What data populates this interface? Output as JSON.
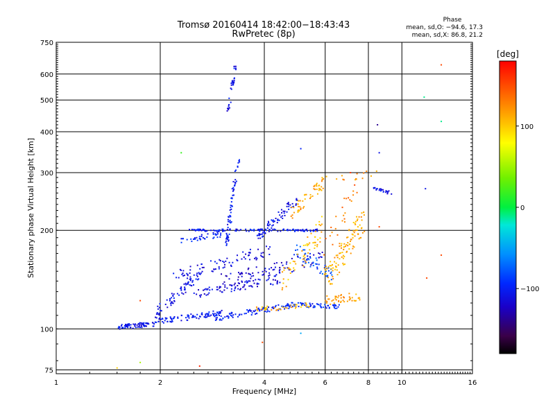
{
  "chart_data": {
    "type": "scatter",
    "title": "Tromsø 20160414 18:42:00−18:43:43",
    "subtitle": "RwPretec (8p)",
    "xlabel": "Frequency [MHz]",
    "ylabel": "Stationary phase Virtual Height [km]",
    "x_scale": "log2",
    "y_scale": "log",
    "xlim": [
      1,
      16
    ],
    "ylim": [
      73,
      750
    ],
    "x_ticks": [
      1,
      2,
      4,
      6,
      8,
      10,
      16
    ],
    "x_tick_labels": [
      "1",
      "2",
      "4",
      "6",
      "8",
      "10",
      "16"
    ],
    "y_ticks": [
      75,
      100,
      200,
      300,
      400,
      500,
      600,
      750
    ],
    "y_tick_labels": [
      "75",
      "100",
      "200",
      "300",
      "400",
      "500",
      "600",
      "750"
    ],
    "grid": true,
    "phase_stats": {
      "heading": "Phase",
      "line_o": "mean, sd,O: −94.6, 17.3",
      "line_x": "mean, sd,X:  86.8, 21.2"
    },
    "colorbar": {
      "label": "[deg]",
      "min": -180,
      "max": 180,
      "ticks": [
        -100,
        0,
        100
      ],
      "tick_labels": [
        "−100",
        "0",
        "100"
      ]
    },
    "traces": [
      {
        "x0": 1.5,
        "x1": 1.95,
        "y0": 101,
        "y1": 104,
        "phase": -110,
        "n": 70,
        "spread": 0.018
      },
      {
        "x0": 1.9,
        "x1": 3.0,
        "y0": 105,
        "y1": 112,
        "phase": -105,
        "n": 90,
        "spread": 0.02
      },
      {
        "x0": 2.9,
        "x1": 4.8,
        "y0": 108,
        "y1": 118,
        "phase": -100,
        "n": 90,
        "spread": 0.02
      },
      {
        "x0": 4.6,
        "x1": 6.6,
        "y0": 119,
        "y1": 117,
        "phase": -95,
        "n": 60,
        "spread": 0.015
      },
      {
        "x0": 1.9,
        "x1": 2.6,
        "y0": 110,
        "y1": 145,
        "phase": -110,
        "n": 70,
        "spread": 0.035
      },
      {
        "x0": 2.5,
        "x1": 4.5,
        "y0": 128,
        "y1": 142,
        "phase": -115,
        "n": 80,
        "spread": 0.03
      },
      {
        "x0": 2.2,
        "x1": 4.2,
        "y0": 145,
        "y1": 175,
        "phase": -115,
        "n": 80,
        "spread": 0.04
      },
      {
        "x0": 2.4,
        "x1": 5.8,
        "y0": 200,
        "y1": 200,
        "phase": -105,
        "n": 110,
        "spread": 0.008
      },
      {
        "x0": 2.3,
        "x1": 3.0,
        "y0": 185,
        "y1": 195,
        "phase": -100,
        "n": 40,
        "spread": 0.02
      },
      {
        "x0": 3.0,
        "x1": 6.0,
        "y0": 140,
        "y1": 165,
        "phase": -120,
        "n": 90,
        "spread": 0.05
      },
      {
        "x0": 3.8,
        "x1": 5.0,
        "y0": 190,
        "y1": 250,
        "phase": -110,
        "n": 70,
        "spread": 0.04
      },
      {
        "x0": 4.9,
        "x1": 6.3,
        "y0": 175,
        "y1": 145,
        "phase": -85,
        "n": 50,
        "spread": 0.05
      },
      {
        "x0": 3.1,
        "x1": 3.3,
        "y0": 180,
        "y1": 290,
        "phase": -105,
        "n": 60,
        "spread": 0.04
      },
      {
        "x0": 3.15,
        "x1": 3.3,
        "y0": 460,
        "y1": 640,
        "phase": -110,
        "n": 35,
        "spread": 0.015
      },
      {
        "x0": 3.3,
        "x1": 3.4,
        "y0": 300,
        "y1": 330,
        "phase": -105,
        "n": 8,
        "spread": 0.02
      },
      {
        "x0": 4.8,
        "x1": 6.0,
        "y0": 225,
        "y1": 285,
        "phase": 115,
        "n": 55,
        "spread": 0.04
      },
      {
        "x0": 3.8,
        "x1": 5.4,
        "y0": 115,
        "y1": 118,
        "phase": 110,
        "n": 35,
        "spread": 0.02
      },
      {
        "x0": 6.0,
        "x1": 7.6,
        "y0": 122,
        "y1": 126,
        "phase": 115,
        "n": 45,
        "spread": 0.03
      },
      {
        "x0": 6.0,
        "x1": 7.8,
        "y0": 140,
        "y1": 220,
        "phase": 110,
        "n": 110,
        "spread": 0.09
      },
      {
        "x0": 4.5,
        "x1": 6.0,
        "y0": 140,
        "y1": 210,
        "phase": 105,
        "n": 60,
        "spread": 0.08
      },
      {
        "x0": 6.0,
        "x1": 7.5,
        "y0": 180,
        "y1": 280,
        "phase": 130,
        "n": 25,
        "spread": 0.08
      },
      {
        "x0": 8.3,
        "x1": 9.3,
        "y0": 268,
        "y1": 260,
        "phase": -110,
        "n": 25,
        "spread": 0.01
      },
      {
        "x0": 6.5,
        "x1": 8.5,
        "y0": 285,
        "y1": 295,
        "phase": 120,
        "n": 10,
        "spread": 0.03
      }
    ],
    "isolated_points": [
      {
        "x": 2.3,
        "y": 345,
        "phase": 20
      },
      {
        "x": 1.5,
        "y": 76,
        "phase": 100
      },
      {
        "x": 1.75,
        "y": 79,
        "phase": 55
      },
      {
        "x": 1.75,
        "y": 122,
        "phase": 150
      },
      {
        "x": 2.6,
        "y": 77,
        "phase": 165
      },
      {
        "x": 3.95,
        "y": 91,
        "phase": 150
      },
      {
        "x": 5.1,
        "y": 97,
        "phase": -50
      },
      {
        "x": 8.5,
        "y": 420,
        "phase": -140
      },
      {
        "x": 8.6,
        "y": 345,
        "phase": -110
      },
      {
        "x": 11.6,
        "y": 510,
        "phase": -10
      },
      {
        "x": 11.7,
        "y": 268,
        "phase": -110
      },
      {
        "x": 13.0,
        "y": 430,
        "phase": -10
      },
      {
        "x": 13.0,
        "y": 640,
        "phase": 150
      },
      {
        "x": 13.0,
        "y": 168,
        "phase": 150
      },
      {
        "x": 11.8,
        "y": 143,
        "phase": 150
      },
      {
        "x": 8.6,
        "y": 205,
        "phase": 150
      },
      {
        "x": 7.1,
        "y": 300,
        "phase": 160
      },
      {
        "x": 7.3,
        "y": 275,
        "phase": 150
      },
      {
        "x": 5.1,
        "y": 355,
        "phase": -100
      },
      {
        "x": 7.9,
        "y": 303,
        "phase": 125
      }
    ]
  }
}
